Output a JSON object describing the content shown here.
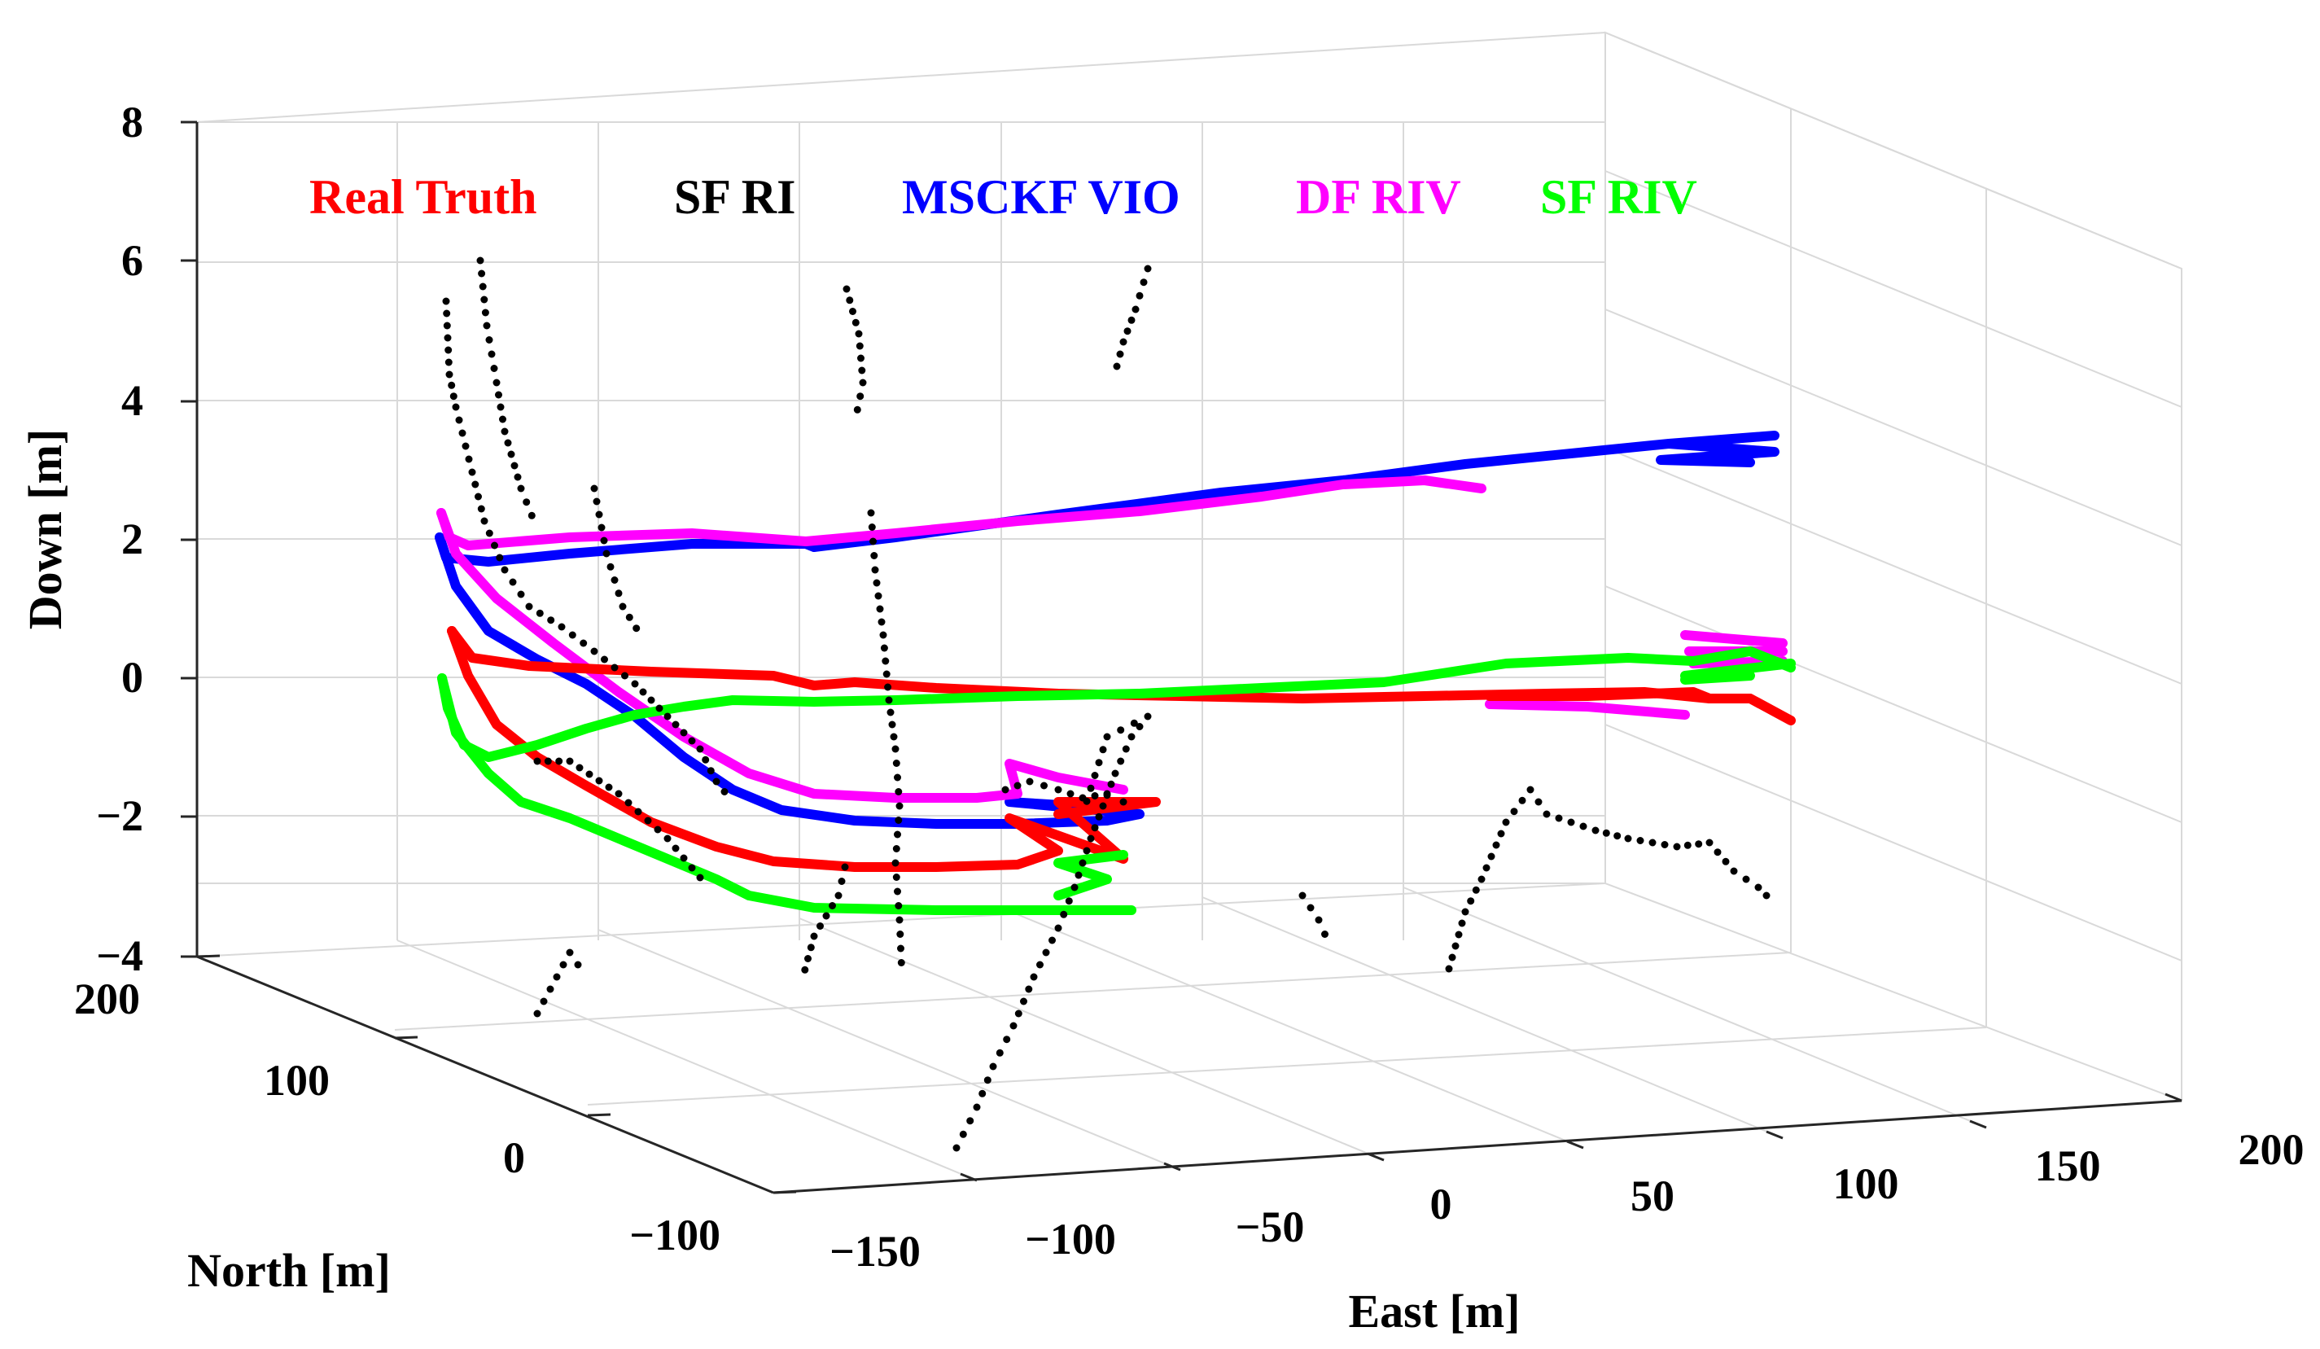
{
  "chart_data": {
    "type": "line3d",
    "title": "",
    "xlabel": "East [m]",
    "ylabel": "North [m]",
    "zlabel": "Down [m]",
    "xlim": [
      -150,
      200
    ],
    "ylim": [
      -100,
      200
    ],
    "zlim": [
      -4,
      8
    ],
    "grid": true,
    "x_ticks": [
      "−150",
      "−100",
      "−50",
      "0",
      "50",
      "100",
      "150",
      "200"
    ],
    "y_ticks": [
      "−100",
      "0",
      "100",
      "200"
    ],
    "z_ticks": [
      "−4",
      "−2",
      "0",
      "2",
      "4",
      "6",
      "8"
    ],
    "legend_position": "top",
    "series": [
      {
        "name": "Real Truth",
        "color": "#ff0000",
        "style": "line"
      },
      {
        "name": "SF RI",
        "color": "#000000",
        "style": "dots"
      },
      {
        "name": "MSCKF VIO",
        "color": "#0000ff",
        "style": "line"
      },
      {
        "name": "DF RIV",
        "color": "#ff00ff",
        "style": "line"
      },
      {
        "name": "SF RIV",
        "color": "#00ff00",
        "style": "line"
      }
    ]
  }
}
